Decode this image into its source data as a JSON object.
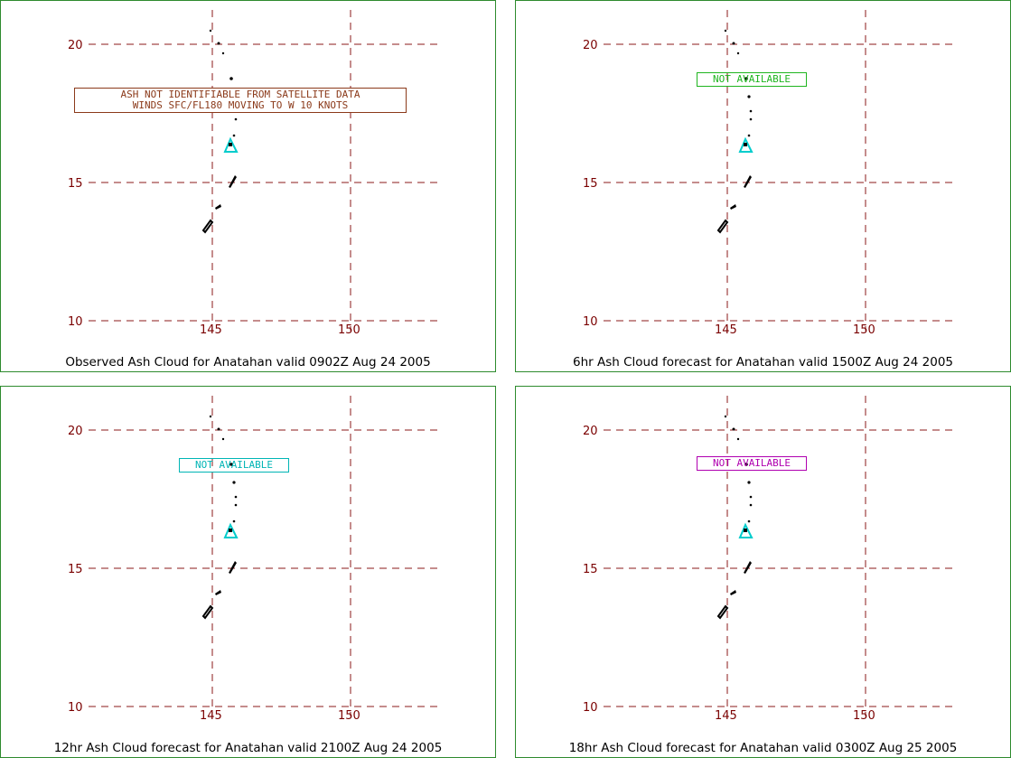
{
  "axes": {
    "lat_ticks": [
      "20",
      "15",
      "10"
    ],
    "lon_ticks": [
      "145",
      "150"
    ]
  },
  "volcano_icon": "volcano-triangle-icon",
  "colors": {
    "grid": "#8b1a1a",
    "tick_label": "#7a0000",
    "volcano": "#00cccc",
    "panel_border": "#2e8b2e"
  },
  "panels": [
    {
      "caption": "Observed Ash Cloud for Anatahan valid 0902Z Aug 24 2005",
      "note_lines": [
        "ASH NOT IDENTIFIABLE FROM SATELLITE DATA",
        "WINDS SFC/FL180 MOVING TO W 10 KNOTS"
      ],
      "note_color": "#8b3a1a"
    },
    {
      "caption": "6hr Ash Cloud forecast for Anatahan valid 1500Z Aug 24 2005",
      "note_lines": [
        "NOT AVAILABLE"
      ],
      "note_color": "#1fb51f"
    },
    {
      "caption": "12hr Ash Cloud forecast for Anatahan valid 2100Z Aug 24 2005",
      "note_lines": [
        "NOT AVAILABLE"
      ],
      "note_color": "#00b5b5"
    },
    {
      "caption": "18hr Ash Cloud forecast for Anatahan valid 0300Z Aug 25 2005",
      "note_lines": [
        "NOT AVAILABLE"
      ],
      "note_color": "#b000b0"
    }
  ]
}
